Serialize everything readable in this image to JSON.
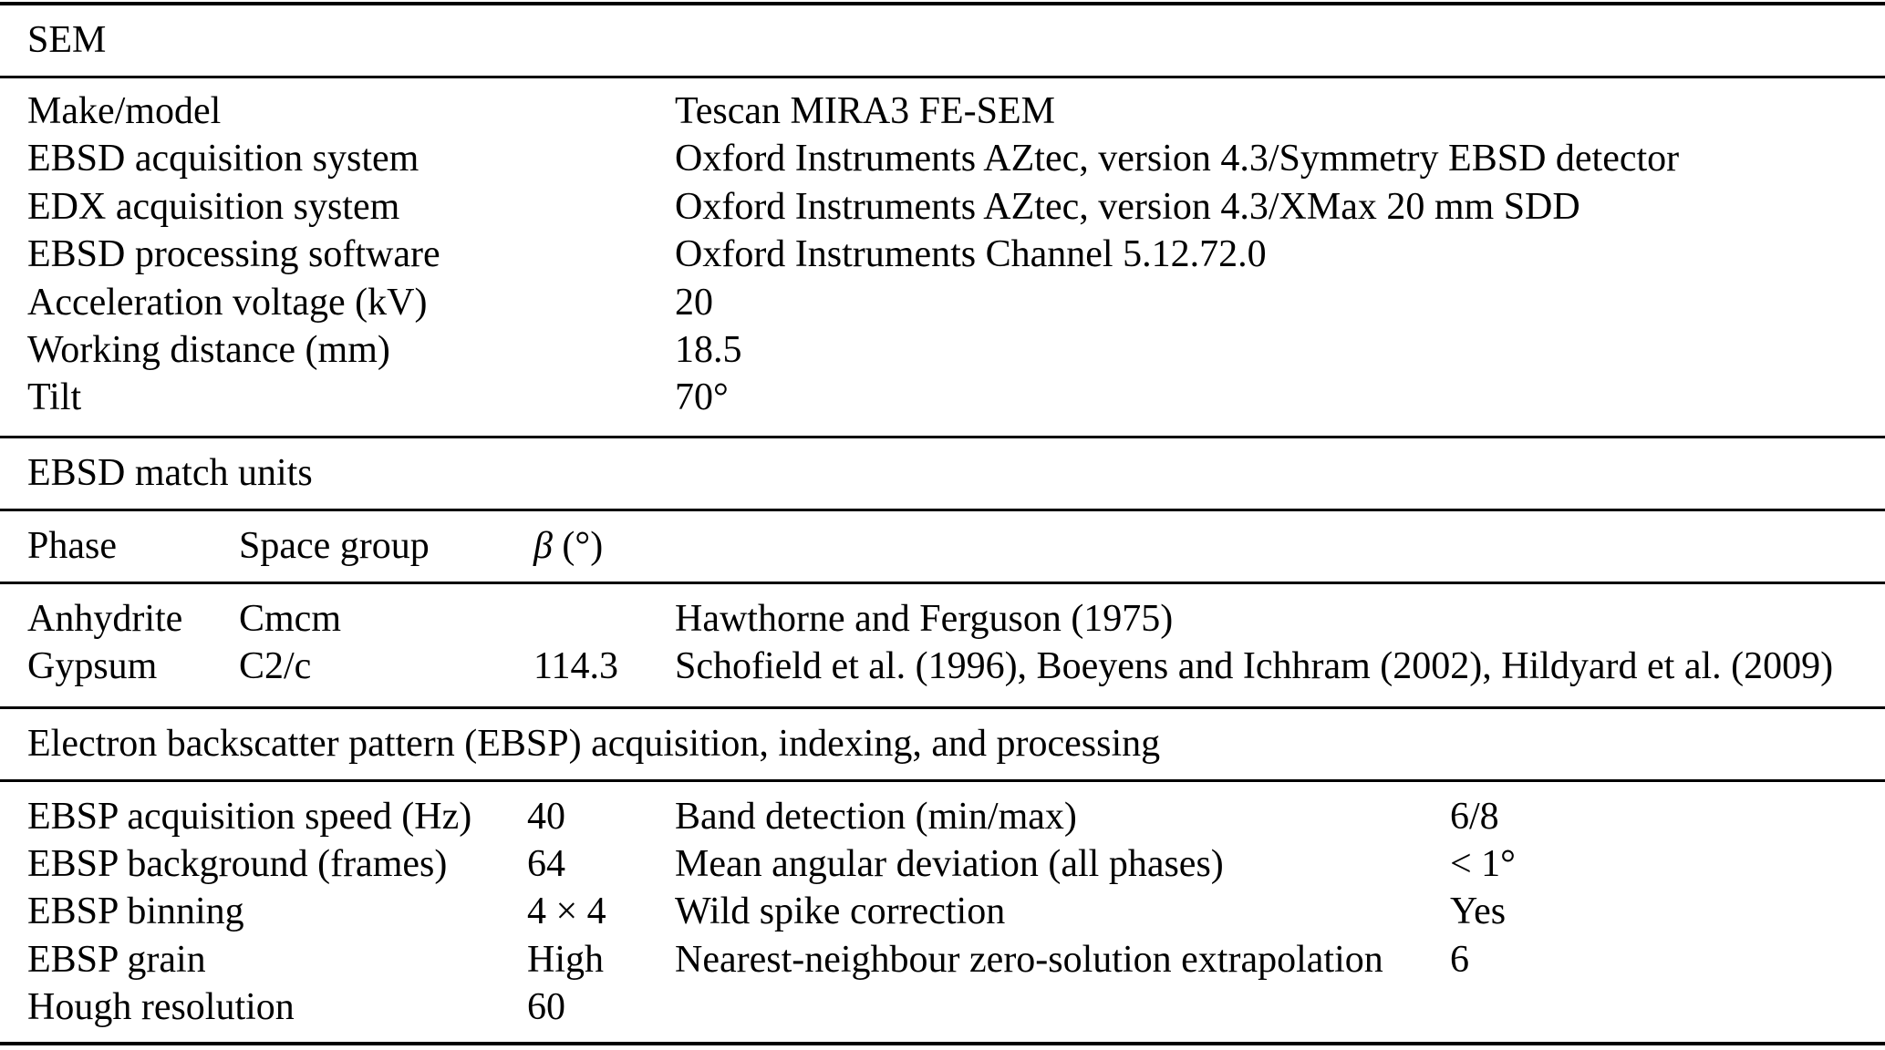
{
  "colors": {
    "text": "#000000",
    "background": "#ffffff",
    "rule": "#000000"
  },
  "sem": {
    "title": "SEM",
    "rows": [
      {
        "label": "Make/model",
        "value": "Tescan MIRA3 FE-SEM"
      },
      {
        "label": "EBSD acquisition system",
        "value": "Oxford Instruments AZtec, version 4.3/Symmetry EBSD detector"
      },
      {
        "label": "EDX acquisition system",
        "value": "Oxford Instruments AZtec, version 4.3/XMax 20 mm SDD"
      },
      {
        "label": "EBSD processing software",
        "value": "Oxford Instruments Channel 5.12.72.0"
      },
      {
        "label": "Acceleration voltage (kV)",
        "value": "20"
      },
      {
        "label": "Working distance (mm)",
        "value": "18.5"
      },
      {
        "label": "Tilt",
        "value": "70°"
      }
    ]
  },
  "match_units": {
    "title": "EBSD match units",
    "columns": {
      "phase": "Phase",
      "space_group": "Space group",
      "beta_symbol": "β",
      "beta_unit": "(°)"
    },
    "rows": [
      {
        "phase": "Anhydrite",
        "space_group": "Cmcm",
        "beta": "",
        "reference": "Hawthorne and Ferguson (1975)"
      },
      {
        "phase": "Gypsum",
        "space_group": "C2/c",
        "beta": "114.3",
        "reference": "Schofield et al. (1996), Boeyens and Ichhram (2002), Hildyard et al. (2009)"
      }
    ]
  },
  "ebsp": {
    "title": "Electron backscatter pattern (EBSP) acquisition, indexing, and processing",
    "rows": [
      {
        "label_left": "EBSP acquisition speed (Hz)",
        "value_left": "40",
        "label_right": "Band detection (min/max)",
        "value_right": "6/8"
      },
      {
        "label_left": "EBSP background (frames)",
        "value_left": "64",
        "label_right": "Mean angular deviation (all phases)",
        "value_right": "< 1°"
      },
      {
        "label_left": "EBSP binning",
        "value_left": "4 × 4",
        "label_right": "Wild spike correction",
        "value_right": "Yes"
      },
      {
        "label_left": "EBSP grain",
        "value_left": "High",
        "label_right": "Nearest-neighbour zero-solution extrapolation",
        "value_right": "6"
      },
      {
        "label_left": "Hough resolution",
        "value_left": "60",
        "label_right": "",
        "value_right": ""
      }
    ]
  }
}
